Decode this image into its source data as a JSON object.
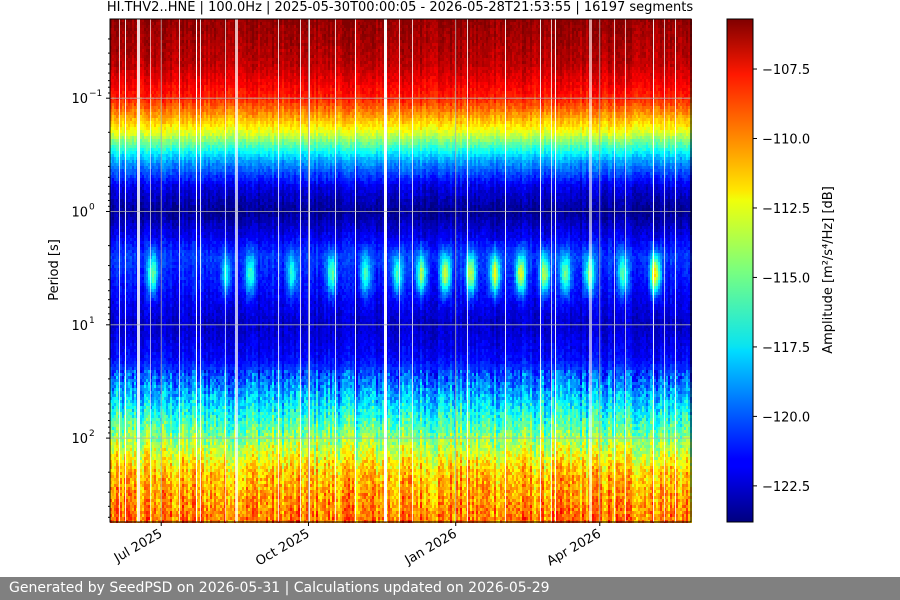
{
  "chart_data": {
    "type": "heatmap",
    "title": "HI.THV2..HNE | 100.0Hz | 2025-05-30T00:00:05 - 2026-05-28T21:53:55 | 16197 segments",
    "x_range": [
      "2025-05-30",
      "2026-05-28"
    ],
    "x_ticks": [
      {
        "date": "2025-07-01",
        "label": "Jul 2025"
      },
      {
        "date": "2025-10-01",
        "label": "Oct 2025"
      },
      {
        "date": "2026-01-01",
        "label": "Jan 2026"
      },
      {
        "date": "2026-04-01",
        "label": "Apr 2026"
      }
    ],
    "ylabel": "Period [s]",
    "y_scale": "log",
    "y_range": [
      0.02,
      550
    ],
    "y_ticks": [
      {
        "value": 0.1,
        "label_base": "10",
        "label_exp": "−1"
      },
      {
        "value": 1,
        "label_base": "10",
        "label_exp": "0"
      },
      {
        "value": 10,
        "label_base": "10",
        "label_exp": "1"
      },
      {
        "value": 100,
        "label_base": "10",
        "label_exp": "2"
      }
    ],
    "grid": true,
    "colorscale": "jet",
    "colorbar": {
      "label": "Amplitude [m²/s⁴/Hz] [dB]",
      "range": [
        -123.8,
        -105.7
      ],
      "ticks": [
        -107.5,
        -110.0,
        -112.5,
        -115.0,
        -117.5,
        -120.0,
        -122.5
      ],
      "tick_labels": [
        "−107.5",
        "−110.0",
        "−112.5",
        "−115.0",
        "−117.5",
        "−120.0",
        "−122.5"
      ]
    },
    "amplitude_profile_db": [
      {
        "period": 0.02,
        "db": -106.0
      },
      {
        "period": 0.05,
        "db": -106.8
      },
      {
        "period": 0.1,
        "db": -108.5
      },
      {
        "period": 0.2,
        "db": -113.0
      },
      {
        "period": 0.35,
        "db": -118.5
      },
      {
        "period": 0.6,
        "db": -122.0
      },
      {
        "period": 1.0,
        "db": -123.5
      },
      {
        "period": 2.5,
        "db": -120.5
      },
      {
        "period": 5.0,
        "db": -121.5
      },
      {
        "period": 10,
        "db": -122.5
      },
      {
        "period": 20,
        "db": -121.5
      },
      {
        "period": 40,
        "db": -118.5
      },
      {
        "period": 100,
        "db": -114.5
      },
      {
        "period": 200,
        "db": -111.5
      },
      {
        "period": 550,
        "db": -110.0
      }
    ],
    "microseism_events": [
      {
        "date": "2025-06-25",
        "db": -115.0
      },
      {
        "date": "2025-08-10",
        "db": -117.0
      },
      {
        "date": "2025-08-25",
        "db": -116.0
      },
      {
        "date": "2025-09-20",
        "db": -116.5
      },
      {
        "date": "2025-10-15",
        "db": -115.5
      },
      {
        "date": "2025-11-05",
        "db": -116.0
      },
      {
        "date": "2025-11-25",
        "db": -115.5
      },
      {
        "date": "2025-12-10",
        "db": -114.0
      },
      {
        "date": "2025-12-25",
        "db": -113.0
      },
      {
        "date": "2026-01-10",
        "db": -113.5
      },
      {
        "date": "2026-01-25",
        "db": -112.5
      },
      {
        "date": "2026-02-10",
        "db": -113.0
      },
      {
        "date": "2026-02-25",
        "db": -113.5
      },
      {
        "date": "2026-03-10",
        "db": -115.0
      },
      {
        "date": "2026-03-25",
        "db": -114.5
      },
      {
        "date": "2026-04-15",
        "db": -115.5
      },
      {
        "date": "2026-05-05",
        "db": -111.5
      }
    ]
  },
  "footer": {
    "text": "Generated by SeedPSD on 2026-05-31 | Calculations updated on 2026-05-29"
  }
}
